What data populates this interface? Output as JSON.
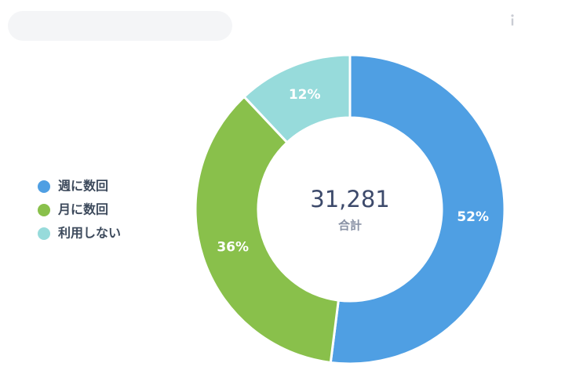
{
  "chart_data": {
    "type": "donut",
    "categories": [
      "週に数回",
      "月に数回",
      "利用しない"
    ],
    "values": [
      52,
      36,
      12
    ],
    "value_labels": [
      "52%",
      "36%",
      "12%"
    ],
    "colors": [
      "#4f9fe3",
      "#89c04b",
      "#97dbdb"
    ],
    "center_value": "31,281",
    "center_label": "合計",
    "legend": "left"
  }
}
